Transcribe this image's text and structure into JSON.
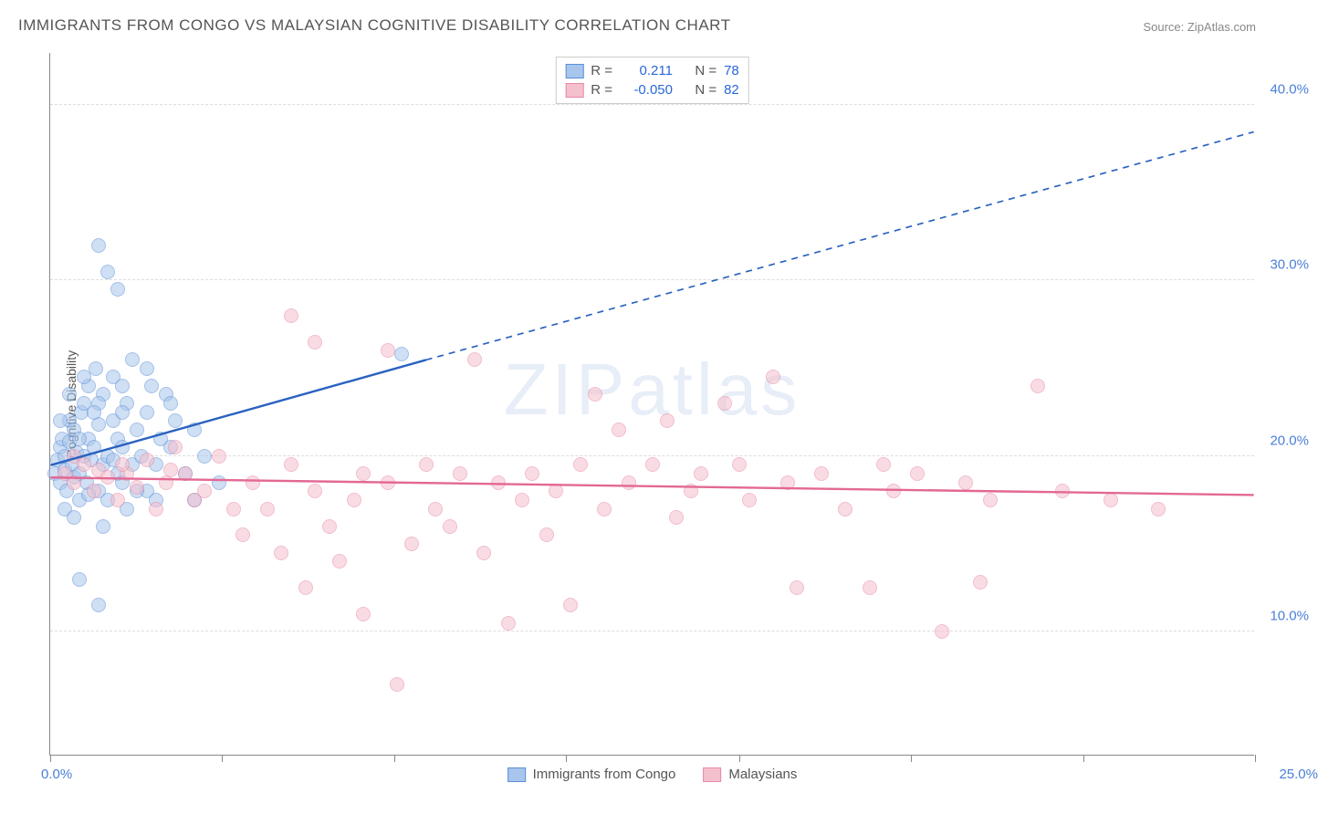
{
  "title": "IMMIGRANTS FROM CONGO VS MALAYSIAN COGNITIVE DISABILITY CORRELATION CHART",
  "source": "Source: ZipAtlas.com",
  "watermark": "ZIPatlas",
  "ylabel": "Cognitive Disability",
  "chart": {
    "type": "scatter",
    "xlim": [
      0,
      25
    ],
    "ylim": [
      3,
      43
    ],
    "yticks": [
      10,
      20,
      30,
      40
    ],
    "ytick_labels": [
      "10.0%",
      "20.0%",
      "30.0%",
      "40.0%"
    ],
    "xticks": [
      0,
      3.57,
      7.14,
      10.71,
      14.29,
      17.86,
      21.43,
      25
    ],
    "xtick_label_left": "0.0%",
    "xtick_label_right": "25.0%",
    "background_color": "#ffffff",
    "grid_color": "#dddddd",
    "point_radius": 8,
    "point_opacity": 0.55,
    "series": [
      {
        "name": "Immigrants from Congo",
        "color_fill": "#a8c5ec",
        "color_stroke": "#5b8fd6",
        "r": 0.211,
        "n": 78,
        "trend": {
          "x1": 0,
          "y1": 19.5,
          "x2_solid": 7.8,
          "y2_solid": 25.5,
          "x2": 25,
          "y2": 38.5,
          "stroke": "#2a62c0",
          "width": 2.4
        },
        "points": [
          [
            0.1,
            19.0
          ],
          [
            0.15,
            19.8
          ],
          [
            0.2,
            20.5
          ],
          [
            0.2,
            18.5
          ],
          [
            0.25,
            21.0
          ],
          [
            0.3,
            19.2
          ],
          [
            0.3,
            20.0
          ],
          [
            0.35,
            18.0
          ],
          [
            0.4,
            20.8
          ],
          [
            0.4,
            22.0
          ],
          [
            0.45,
            19.5
          ],
          [
            0.5,
            21.5
          ],
          [
            0.5,
            18.8
          ],
          [
            0.55,
            20.2
          ],
          [
            0.6,
            17.5
          ],
          [
            0.6,
            19.0
          ],
          [
            0.65,
            22.5
          ],
          [
            0.7,
            20.0
          ],
          [
            0.7,
            23.0
          ],
          [
            0.75,
            18.5
          ],
          [
            0.8,
            21.0
          ],
          [
            0.8,
            24.0
          ],
          [
            0.85,
            19.8
          ],
          [
            0.9,
            20.5
          ],
          [
            0.95,
            25.0
          ],
          [
            1.0,
            18.0
          ],
          [
            1.0,
            21.8
          ],
          [
            1.1,
            19.5
          ],
          [
            1.1,
            23.5
          ],
          [
            1.2,
            17.5
          ],
          [
            1.2,
            20.0
          ],
          [
            1.3,
            22.0
          ],
          [
            1.3,
            24.5
          ],
          [
            1.4,
            19.0
          ],
          [
            1.4,
            21.0
          ],
          [
            1.5,
            18.5
          ],
          [
            1.5,
            20.5
          ],
          [
            1.6,
            23.0
          ],
          [
            1.7,
            19.5
          ],
          [
            1.7,
            25.5
          ],
          [
            1.8,
            21.5
          ],
          [
            1.9,
            20.0
          ],
          [
            2.0,
            22.5
          ],
          [
            2.0,
            18.0
          ],
          [
            2.1,
            24.0
          ],
          [
            2.2,
            19.5
          ],
          [
            2.3,
            21.0
          ],
          [
            2.4,
            23.5
          ],
          [
            2.5,
            20.5
          ],
          [
            2.6,
            22.0
          ],
          [
            2.8,
            19.0
          ],
          [
            3.0,
            21.5
          ],
          [
            3.0,
            17.5
          ],
          [
            3.2,
            20.0
          ],
          [
            3.5,
            18.5
          ],
          [
            1.0,
            32.0
          ],
          [
            1.2,
            30.5
          ],
          [
            1.4,
            29.5
          ],
          [
            0.6,
            13.0
          ],
          [
            1.0,
            11.5
          ],
          [
            2.5,
            23.0
          ],
          [
            2.0,
            25.0
          ],
          [
            1.5,
            24.0
          ],
          [
            0.3,
            17.0
          ],
          [
            0.5,
            16.5
          ],
          [
            0.8,
            17.8
          ],
          [
            1.1,
            16.0
          ],
          [
            1.3,
            19.8
          ],
          [
            1.6,
            17.0
          ],
          [
            1.8,
            18.0
          ],
          [
            2.2,
            17.5
          ],
          [
            0.4,
            23.5
          ],
          [
            0.7,
            24.5
          ],
          [
            1.0,
            23.0
          ],
          [
            1.5,
            22.5
          ],
          [
            0.2,
            22.0
          ],
          [
            0.6,
            21.0
          ],
          [
            0.9,
            22.5
          ],
          [
            7.3,
            25.8
          ]
        ]
      },
      {
        "name": "Malaysians",
        "color_fill": "#f5c0cd",
        "color_stroke": "#e888a5",
        "r": -0.05,
        "n": 82,
        "trend": {
          "x1": 0,
          "y1": 18.8,
          "x2_solid": 25,
          "y2_solid": 17.8,
          "x2": 25,
          "y2": 17.8,
          "stroke": "#e36894",
          "width": 2.4
        },
        "points": [
          [
            0.3,
            19.0
          ],
          [
            0.5,
            18.5
          ],
          [
            0.7,
            19.5
          ],
          [
            0.9,
            18.0
          ],
          [
            1.0,
            19.2
          ],
          [
            1.2,
            18.8
          ],
          [
            1.4,
            17.5
          ],
          [
            1.6,
            19.0
          ],
          [
            1.8,
            18.2
          ],
          [
            2.0,
            19.8
          ],
          [
            2.2,
            17.0
          ],
          [
            2.4,
            18.5
          ],
          [
            2.6,
            20.5
          ],
          [
            2.8,
            19.0
          ],
          [
            3.0,
            17.5
          ],
          [
            3.2,
            18.0
          ],
          [
            3.5,
            20.0
          ],
          [
            3.8,
            17.0
          ],
          [
            4.0,
            15.5
          ],
          [
            4.2,
            18.5
          ],
          [
            4.5,
            17.0
          ],
          [
            4.8,
            14.5
          ],
          [
            5.0,
            19.5
          ],
          [
            5.0,
            28.0
          ],
          [
            5.3,
            12.5
          ],
          [
            5.5,
            18.0
          ],
          [
            5.5,
            26.5
          ],
          [
            5.8,
            16.0
          ],
          [
            6.0,
            14.0
          ],
          [
            6.3,
            17.5
          ],
          [
            6.5,
            19.0
          ],
          [
            6.5,
            11.0
          ],
          [
            7.0,
            18.5
          ],
          [
            7.0,
            26.0
          ],
          [
            7.2,
            7.0
          ],
          [
            7.5,
            15.0
          ],
          [
            7.8,
            19.5
          ],
          [
            8.0,
            17.0
          ],
          [
            8.3,
            16.0
          ],
          [
            8.5,
            19.0
          ],
          [
            8.8,
            25.5
          ],
          [
            9.0,
            14.5
          ],
          [
            9.3,
            18.5
          ],
          [
            9.5,
            10.5
          ],
          [
            9.8,
            17.5
          ],
          [
            10.0,
            19.0
          ],
          [
            10.3,
            15.5
          ],
          [
            10.5,
            18.0
          ],
          [
            10.8,
            11.5
          ],
          [
            11.0,
            19.5
          ],
          [
            11.3,
            23.5
          ],
          [
            11.5,
            17.0
          ],
          [
            11.8,
            21.5
          ],
          [
            12.0,
            18.5
          ],
          [
            12.5,
            19.5
          ],
          [
            12.8,
            22.0
          ],
          [
            13.0,
            16.5
          ],
          [
            13.3,
            18.0
          ],
          [
            13.5,
            19.0
          ],
          [
            14.0,
            23.0
          ],
          [
            14.3,
            19.5
          ],
          [
            14.5,
            17.5
          ],
          [
            15.0,
            24.5
          ],
          [
            15.3,
            18.5
          ],
          [
            15.5,
            12.5
          ],
          [
            16.0,
            19.0
          ],
          [
            16.5,
            17.0
          ],
          [
            17.0,
            12.5
          ],
          [
            17.3,
            19.5
          ],
          [
            17.5,
            18.0
          ],
          [
            18.0,
            19.0
          ],
          [
            18.5,
            10.0
          ],
          [
            19.0,
            18.5
          ],
          [
            19.3,
            12.8
          ],
          [
            19.5,
            17.5
          ],
          [
            20.5,
            24.0
          ],
          [
            21.0,
            18.0
          ],
          [
            22.0,
            17.5
          ],
          [
            23.0,
            17.0
          ],
          [
            0.5,
            20.0
          ],
          [
            1.5,
            19.5
          ],
          [
            2.5,
            19.2
          ]
        ]
      }
    ]
  },
  "legend_top": [
    {
      "swatch_fill": "#a8c5ec",
      "swatch_stroke": "#5b8fd6",
      "r_label": "R =",
      "r_val": "0.211",
      "n_label": "N =",
      "n_val": "78"
    },
    {
      "swatch_fill": "#f5c0cd",
      "swatch_stroke": "#e888a5",
      "r_label": "R =",
      "r_val": "-0.050",
      "n_label": "N =",
      "n_val": "82"
    }
  ],
  "legend_bottom": [
    {
      "swatch_fill": "#a8c5ec",
      "swatch_stroke": "#5b8fd6",
      "label": "Immigrants from Congo"
    },
    {
      "swatch_fill": "#f5c0cd",
      "swatch_stroke": "#e888a5",
      "label": "Malaysians"
    }
  ]
}
